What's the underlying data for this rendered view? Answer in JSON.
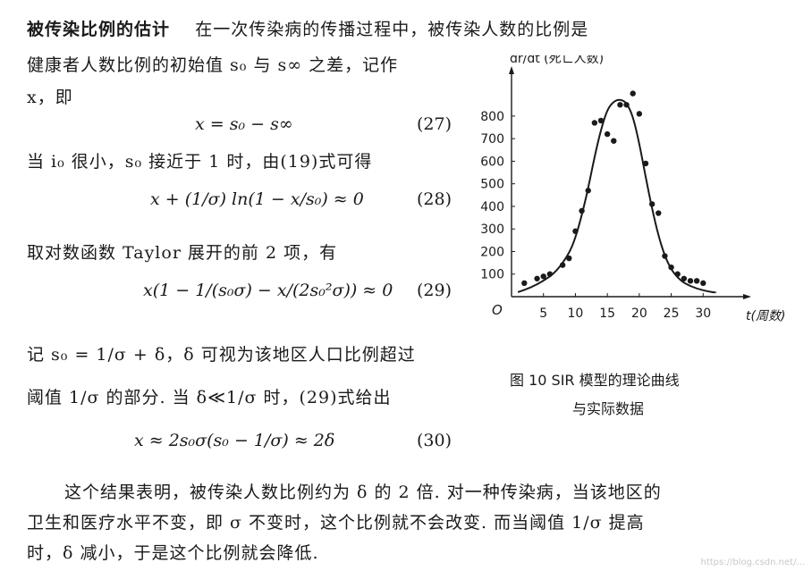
{
  "para1": {
    "title": "被传染比例的估计",
    "line1_rest": "在一次传染病的传播过程中，被传染人数的比例是",
    "line2": "健康者人数比例的初始值 s₀ 与 s∞ 之差，记作",
    "line3": "x，即"
  },
  "eq27": {
    "formula": "x = s₀ − s∞",
    "number": "(27)"
  },
  "line_when": "当 i₀ 很小，s₀ 接近于 1 时，由(19)式可得",
  "eq28": {
    "formula": "x + (1/σ) ln(1 − x/s₀) ≈ 0",
    "number": "(28)"
  },
  "line_taylor": "取对数函数 Taylor 展开的前 2 项，有",
  "eq29": {
    "formula": "x(1 − 1/(s₀σ) − x/(2s₀²σ)) ≈ 0",
    "number": "(29)"
  },
  "line_ji": "记 s₀ = 1/σ + δ，δ 可视为该地区人口比例超过",
  "line_yu": "阈值 1/σ 的部分. 当 δ≪1/σ 时，(29)式给出",
  "eq30": {
    "formula": "x ≈ 2s₀σ(s₀ − 1/σ) ≈ 2δ",
    "number": "(30)"
  },
  "conclusion": [
    "这个结果表明，被传染人数比例约为 δ 的 2 倍. 对一种传染病，当该地区的",
    "卫生和医疗水平不变，即 σ 不变时，这个比例就不会改变. 而当阈值 1/σ 提高",
    "时，δ 减小，于是这个比例就会降低."
  ],
  "caption": {
    "line1": "图 10   SIR 模型的理论曲线",
    "line2": "与实际数据"
  },
  "watermark": "https://blog.csdn.net/...",
  "chart_data": {
    "type": "scatter",
    "ylabel": "dr/dt (死亡人数)",
    "xlabel": "t(周数)",
    "origin_label": "O",
    "x_ticks": [
      "5",
      "10",
      "15",
      "20",
      "25",
      "30"
    ],
    "y_ticks": [
      "100",
      "200",
      "300",
      "400",
      "500",
      "600",
      "700",
      "800"
    ],
    "xlim": [
      0,
      35
    ],
    "ylim": [
      0,
      950
    ],
    "points": [
      [
        2,
        60
      ],
      [
        4,
        80
      ],
      [
        5,
        90
      ],
      [
        6,
        100
      ],
      [
        8,
        140
      ],
      [
        9,
        170
      ],
      [
        10,
        290
      ],
      [
        11,
        380
      ],
      [
        12,
        470
      ],
      [
        13,
        770
      ],
      [
        14,
        780
      ],
      [
        15,
        720
      ],
      [
        16,
        690
      ],
      [
        17,
        850
      ],
      [
        18,
        850
      ],
      [
        19,
        900
      ],
      [
        20,
        810
      ],
      [
        21,
        590
      ],
      [
        22,
        410
      ],
      [
        23,
        370
      ],
      [
        24,
        180
      ],
      [
        25,
        130
      ],
      [
        26,
        100
      ],
      [
        27,
        80
      ],
      [
        28,
        70
      ],
      [
        29,
        70
      ],
      [
        30,
        60
      ]
    ],
    "curve": [
      [
        1,
        20
      ],
      [
        3,
        40
      ],
      [
        5,
        70
      ],
      [
        7,
        110
      ],
      [
        9,
        190
      ],
      [
        10,
        260
      ],
      [
        11,
        360
      ],
      [
        12,
        480
      ],
      [
        13,
        620
      ],
      [
        14,
        740
      ],
      [
        15,
        830
      ],
      [
        16,
        865
      ],
      [
        17,
        875
      ],
      [
        18,
        860
      ],
      [
        19,
        800
      ],
      [
        20,
        680
      ],
      [
        21,
        530
      ],
      [
        22,
        390
      ],
      [
        23,
        270
      ],
      [
        24,
        180
      ],
      [
        25,
        120
      ],
      [
        26,
        85
      ],
      [
        27,
        60
      ],
      [
        29,
        35
      ],
      [
        31,
        22
      ],
      [
        32,
        18
      ]
    ],
    "colors": {
      "ink": "#1a1a1a"
    }
  }
}
